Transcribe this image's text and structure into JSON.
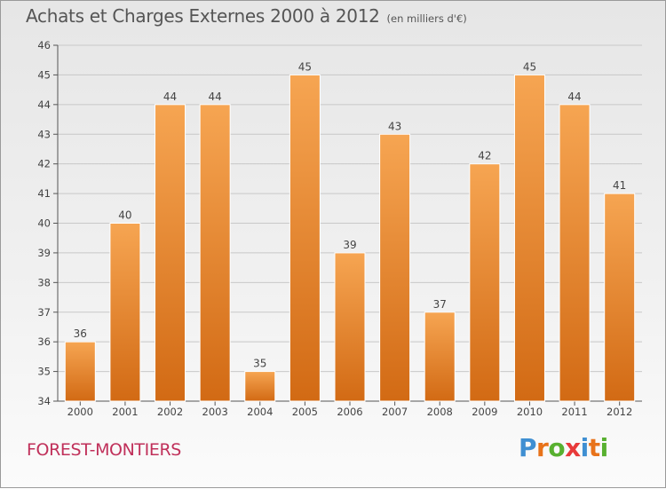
{
  "title": "Achats et Charges Externes 2000 à 2012",
  "subtitle": "(en milliers d'€)",
  "town": "FOREST-MONTIERS",
  "logo": {
    "letters": [
      "P",
      "r",
      "o",
      "x",
      "i",
      "t",
      "i"
    ],
    "colors": [
      "#3f8fd2",
      "#e8731a",
      "#58b030",
      "#e83a3a",
      "#3f8fd2",
      "#e8731a",
      "#58b030"
    ]
  },
  "colors": {
    "bar": "#f29a3e",
    "bar_dark": "#d46a14",
    "axis": "#555555",
    "grid": "#c8c8c8"
  },
  "chart_data": {
    "type": "bar",
    "categories": [
      "2000",
      "2001",
      "2002",
      "2003",
      "2004",
      "2005",
      "2006",
      "2007",
      "2008",
      "2009",
      "2010",
      "2011",
      "2012"
    ],
    "values": [
      36,
      40,
      44,
      44,
      35,
      45,
      39,
      43,
      37,
      42,
      45,
      44,
      41
    ],
    "ylim": [
      34,
      46
    ],
    "yticks": [
      34,
      35,
      36,
      37,
      38,
      39,
      40,
      41,
      42,
      43,
      44,
      45,
      46
    ],
    "grid": true,
    "data_labels": true
  }
}
